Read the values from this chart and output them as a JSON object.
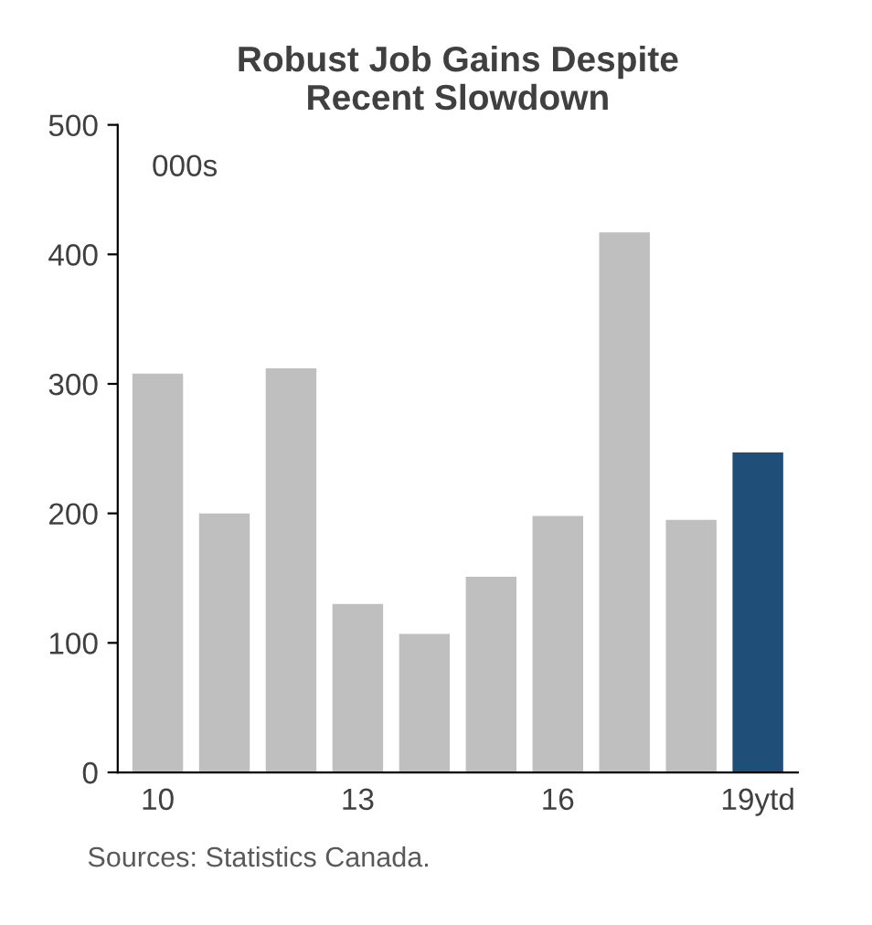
{
  "chart_data": {
    "type": "bar",
    "title": "Robust Job Gains Despite\nRecent Slowdown",
    "categories": [
      "10",
      null,
      null,
      "13",
      null,
      null,
      "16",
      null,
      null,
      "19ytd"
    ],
    "values": [
      308,
      200,
      312,
      130,
      107,
      151,
      198,
      417,
      195,
      247
    ],
    "colors": [
      "#bfbfbf",
      "#bfbfbf",
      "#bfbfbf",
      "#bfbfbf",
      "#bfbfbf",
      "#bfbfbf",
      "#bfbfbf",
      "#bfbfbf",
      "#bfbfbf",
      "#1f4e79"
    ],
    "ylim": [
      0,
      500
    ],
    "yticks": [
      0,
      100,
      200,
      300,
      400,
      500
    ],
    "grid": false,
    "legend": false,
    "annotations": [
      "000s",
      "Sources: Statistics Canada."
    ]
  }
}
